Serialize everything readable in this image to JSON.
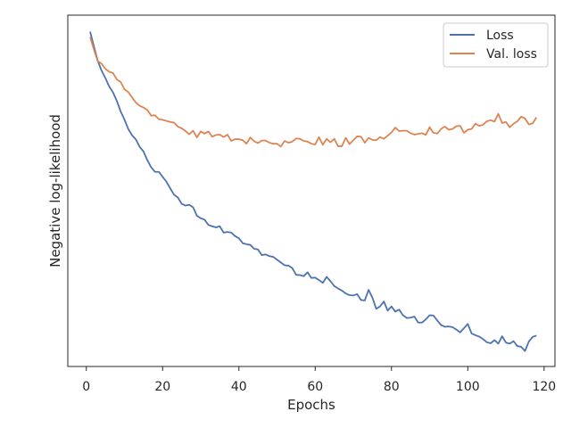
{
  "chart_data": {
    "type": "line",
    "title": "",
    "xlabel": "Epochs",
    "ylabel": "Negative log-likelihood",
    "xlim": [
      -4.85,
      122.85
    ],
    "ylim": [
      0,
      100
    ],
    "x_ticks": [
      0,
      20,
      40,
      60,
      80,
      100,
      120
    ],
    "y_ticks_shown": false,
    "grid": false,
    "legend_position": "top-right",
    "x": [
      1,
      2,
      3,
      4,
      5,
      6,
      7,
      8,
      9,
      10,
      11,
      12,
      13,
      14,
      15,
      16,
      17,
      18,
      19,
      20,
      21,
      22,
      23,
      24,
      25,
      26,
      27,
      28,
      29,
      30,
      31,
      32,
      33,
      34,
      35,
      36,
      37,
      38,
      39,
      40,
      41,
      42,
      43,
      44,
      45,
      46,
      47,
      48,
      49,
      50,
      51,
      52,
      53,
      54,
      55,
      56,
      57,
      58,
      59,
      60,
      61,
      62,
      63,
      64,
      65,
      66,
      67,
      68,
      69,
      70,
      71,
      72,
      73,
      74,
      75,
      76,
      77,
      78,
      79,
      80,
      81,
      82,
      83,
      84,
      85,
      86,
      87,
      88,
      89,
      90,
      91,
      92,
      93,
      94,
      95,
      96,
      97,
      98,
      99,
      100,
      101,
      102,
      103,
      104,
      105,
      106,
      107,
      108,
      109,
      110,
      111,
      112,
      113,
      114,
      115,
      116,
      117,
      118
    ],
    "series": [
      {
        "name": "Loss",
        "color": "#4c72b0",
        "values": [
          95.3,
          91.1,
          87.0,
          84.2,
          82.1,
          79.7,
          78.0,
          75.6,
          72.6,
          70.3,
          67.6,
          65.8,
          64.6,
          62.5,
          61.2,
          58.7,
          56.7,
          55.4,
          55.4,
          54.0,
          52.6,
          50.7,
          48.9,
          48.1,
          46.3,
          45.8,
          46.0,
          45.3,
          42.9,
          42.2,
          41.8,
          40.3,
          39.9,
          39.6,
          39.9,
          38.1,
          38.3,
          38.1,
          37.1,
          36.5,
          35.1,
          34.8,
          34.6,
          33.5,
          33.3,
          31.7,
          31.9,
          31.4,
          31.2,
          30.4,
          29.6,
          28.8,
          28.7,
          28.0,
          26.1,
          26.0,
          25.7,
          26.8,
          25.2,
          25.3,
          24.6,
          23.8,
          25.5,
          24.3,
          22.9,
          22.2,
          21.6,
          20.8,
          20.3,
          20.2,
          20.6,
          18.9,
          18.8,
          21.8,
          19.6,
          16.4,
          17.1,
          18.5,
          15.9,
          17.1,
          15.6,
          16.2,
          14.6,
          13.8,
          13.9,
          14.2,
          12.5,
          12.5,
          13.4,
          14.6,
          14.5,
          13.1,
          11.8,
          11.3,
          11.4,
          11.2,
          10.5,
          9.7,
          10.9,
          12.1,
          9.4,
          8.9,
          8.5,
          7.8,
          6.9,
          6.6,
          7.5,
          6.5,
          8.6,
          6.8,
          6.5,
          7.2,
          5.8,
          5.6,
          4.4,
          7.1,
          8.4,
          8.8
        ]
      },
      {
        "name": "Val. loss",
        "color": "#dd8452",
        "values": [
          93.8,
          90.2,
          86.9,
          86.2,
          84.7,
          83.9,
          83.5,
          81.7,
          81.0,
          78.9,
          78.1,
          76.6,
          75.1,
          74.2,
          73.7,
          73.0,
          71.4,
          71.5,
          70.4,
          70.2,
          69.9,
          69.6,
          69.4,
          68.3,
          67.8,
          67.0,
          66.1,
          67.1,
          65.2,
          66.9,
          66.3,
          66.9,
          65.4,
          65.9,
          66.0,
          65.3,
          66.0,
          64.2,
          64.7,
          64.7,
          64.4,
          63.4,
          65.2,
          64.1,
          63.6,
          64.3,
          64.3,
          63.7,
          63.4,
          63.4,
          62.6,
          64.2,
          63.7,
          64.0,
          64.9,
          64.8,
          64.2,
          64.0,
          63.4,
          63.2,
          65.3,
          63.1,
          64.8,
          63.8,
          64.8,
          62.7,
          62.7,
          65.1,
          63.3,
          64.4,
          65.5,
          65.4,
          63.7,
          65.1,
          64.5,
          64.4,
          65.3,
          64.8,
          65.7,
          66.6,
          68.0,
          67.0,
          67.1,
          67.1,
          66.4,
          66.0,
          66.2,
          66.4,
          65.9,
          68.1,
          66.5,
          66.3,
          67.6,
          68.3,
          67.4,
          67.6,
          68.4,
          68.5,
          66.5,
          67.4,
          67.6,
          69.1,
          68.5,
          68.8,
          69.8,
          70.1,
          69.7,
          71.9,
          69.3,
          69.6,
          68.1,
          69.1,
          69.8,
          71.1,
          70.6,
          68.9,
          69.2,
          70.9
        ]
      }
    ]
  }
}
